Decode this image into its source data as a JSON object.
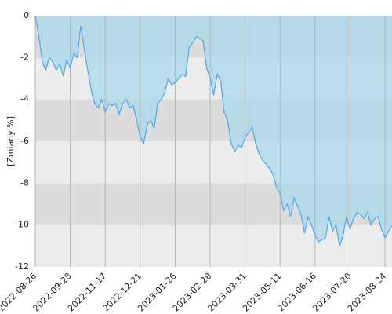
{
  "chart_data": {
    "type": "area",
    "y_label": "[Zmiany %]",
    "values": [
      0,
      -1,
      -2.2,
      -2.6,
      -2,
      -2.2,
      -2.6,
      -2.3,
      -2.9,
      -2.1,
      -2.5,
      -1.8,
      -2,
      -0.5,
      -1.6,
      -2.6,
      -3.6,
      -4.2,
      -4.4,
      -4,
      -4.6,
      -4.2,
      -4.3,
      -4.2,
      -4.7,
      -4.2,
      -4,
      -4.4,
      -4.3,
      -5,
      -5.8,
      -6.1,
      -5.2,
      -5,
      -5.4,
      -4.2,
      -4,
      -3.7,
      -3,
      -3.3,
      -3.2,
      -3,
      -2.8,
      -2.9,
      -1.5,
      -1.3,
      -1,
      -1.1,
      -1.2,
      -2.5,
      -3,
      -3.8,
      -2.8,
      -3.1,
      -4.6,
      -5,
      -6.1,
      -6.5,
      -6.2,
      -6.3,
      -5.8,
      -5.6,
      -5.3,
      -6.1,
      -6.6,
      -6.9,
      -7.1,
      -7.3,
      -7.6,
      -8.2,
      -8.5,
      -9.3,
      -9,
      -9.6,
      -8.7,
      -9.1,
      -9.5,
      -10.4,
      -9.6,
      -10,
      -10.5,
      -10.8,
      -10.7,
      -10.6,
      -9.6,
      -10.3,
      -10,
      -11,
      -10.5,
      -9.6,
      -10.2,
      -9.7,
      -9.4,
      -9.5,
      -9.7,
      -9.4,
      -10,
      -9.7,
      -9.6,
      -10.2,
      -10.6,
      -10.3,
      -10
    ],
    "color": "#5aa9e6",
    "fill": "#a9d8ec",
    "xlim": [
      0,
      102
    ],
    "xticks": [
      {
        "value": 0,
        "label": "2022-08-26"
      },
      {
        "value": 10,
        "label": "2022-09-28"
      },
      {
        "value": 20,
        "label": "2022-11-17"
      },
      {
        "value": 30,
        "label": "2022-12-21"
      },
      {
        "value": 40,
        "label": "2023-01-26"
      },
      {
        "value": 50,
        "label": "2023-02-28"
      },
      {
        "value": 60,
        "label": "2023-03-31"
      },
      {
        "value": 70,
        "label": "2023-05-11"
      },
      {
        "value": 80,
        "label": "2023-06-16"
      },
      {
        "value": 90,
        "label": "2023-07-20"
      },
      {
        "value": 100,
        "label": "2023-08-24"
      }
    ],
    "ylim": [
      -12,
      0
    ],
    "yticks": [
      0,
      -2,
      -4,
      -6,
      -8,
      -10,
      -12
    ],
    "grid": true
  }
}
